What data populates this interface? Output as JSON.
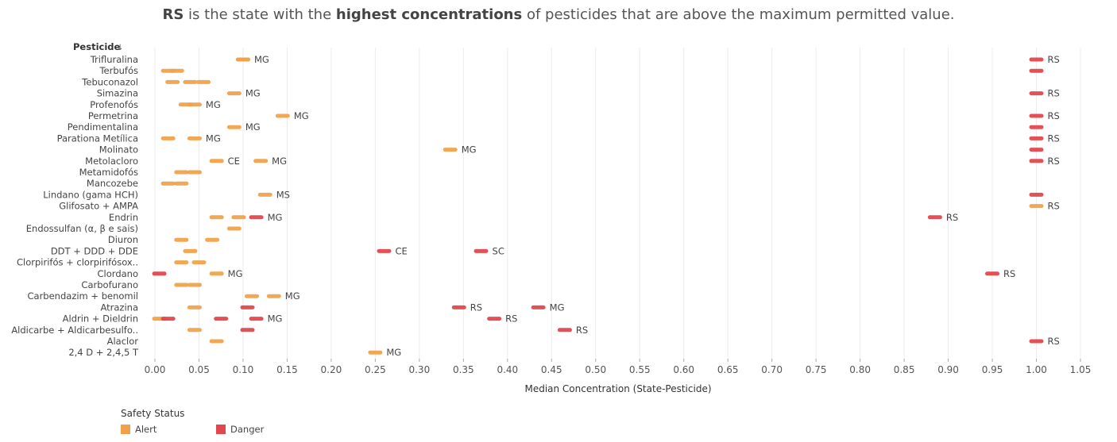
{
  "title": {
    "part1": "RS",
    "part2": " is the state with the ",
    "part3": "highest concentrations",
    "part4": " of pesticides that are above the maximum permitted value."
  },
  "colors": {
    "alert": "#f0a24a",
    "danger": "#e2474c"
  },
  "legend": {
    "title": "Safety Status",
    "items": [
      {
        "label": "Alert",
        "color": "#f0a24a"
      },
      {
        "label": "Danger",
        "color": "#e2474c"
      }
    ]
  },
  "chart_data": {
    "type": "scatter",
    "ylabel": "Pesticide",
    "sort_icon": "sort-descending-icon",
    "xlabel": "Median Concentration (State-Pesticide)",
    "xlim": [
      -0.01,
      1.05
    ],
    "xticks": [
      0.0,
      0.05,
      0.1,
      0.15,
      0.2,
      0.25,
      0.3,
      0.35,
      0.4,
      0.45,
      0.5,
      0.55,
      0.6,
      0.65,
      0.7,
      0.75,
      0.8,
      0.85,
      0.9,
      0.95,
      1.0,
      1.05
    ],
    "xtick_labels": [
      "0.00",
      "0.05",
      "0.10",
      "0.15",
      "0.20",
      "0.25",
      "0.30",
      "0.35",
      "0.40",
      "0.45",
      "0.50",
      "0.55",
      "0.60",
      "0.65",
      "0.70",
      "0.75",
      "0.80",
      "0.85",
      "0.90",
      "0.95",
      "1.00",
      "1.05"
    ],
    "grid": "vertical",
    "categories": [
      "Trifluralina",
      "Terbufós",
      "Tebuconazol",
      "Simazina",
      "Profenofós",
      "Permetrina",
      "Pendimentalina",
      "Parationa Metílica",
      "Molinato",
      "Metolacloro",
      "Metamidofós",
      "Mancozebe",
      "Lindano (gama HCH)",
      "Glifosato + AMPA",
      "Endrin",
      "Endossulfan (α, β e sais)",
      "Diuron",
      "DDT + DDD + DDE",
      "Clorpirifós + clorpirifósox..",
      "Clordano",
      "Carbofurano",
      "Carbendazim + benomil",
      "Atrazina",
      "Aldrin + Dieldrin",
      "Aldicarbe + Aldicarbesulfo..",
      "Alaclor",
      "2,4 D + 2,4,5 T"
    ],
    "points": [
      {
        "cat": "Trifluralina",
        "x": 0.1,
        "status": "Alert"
      },
      {
        "cat": "Trifluralina",
        "x": 0.1,
        "status": "Alert",
        "label": "MG"
      },
      {
        "cat": "Trifluralina",
        "x": 1.0,
        "status": "Danger",
        "label": "RS"
      },
      {
        "cat": "Terbufós",
        "x": 0.015,
        "status": "Alert"
      },
      {
        "cat": "Terbufós",
        "x": 0.025,
        "status": "Alert"
      },
      {
        "cat": "Terbufós",
        "x": 1.0,
        "status": "Danger"
      },
      {
        "cat": "Tebuconazol",
        "x": 0.02,
        "status": "Alert"
      },
      {
        "cat": "Tebuconazol",
        "x": 0.04,
        "status": "Alert"
      },
      {
        "cat": "Tebuconazol",
        "x": 0.055,
        "status": "Alert"
      },
      {
        "cat": "Simazina",
        "x": 0.09,
        "status": "Alert",
        "label": "MG"
      },
      {
        "cat": "Simazina",
        "x": 1.0,
        "status": "Danger",
        "label": "RS"
      },
      {
        "cat": "Profenofós",
        "x": 0.035,
        "status": "Alert"
      },
      {
        "cat": "Profenofós",
        "x": 0.045,
        "status": "Alert",
        "label": "MG"
      },
      {
        "cat": "Permetrina",
        "x": 0.145,
        "status": "Alert",
        "label": "MG"
      },
      {
        "cat": "Permetrina",
        "x": 1.0,
        "status": "Danger",
        "label": "RS"
      },
      {
        "cat": "Pendimentalina",
        "x": 0.09,
        "status": "Alert",
        "label": "MG"
      },
      {
        "cat": "Pendimentalina",
        "x": 1.0,
        "status": "Danger"
      },
      {
        "cat": "Parationa Metílica",
        "x": 0.015,
        "status": "Alert"
      },
      {
        "cat": "Parationa Metílica",
        "x": 0.045,
        "status": "Alert",
        "label": "MG"
      },
      {
        "cat": "Parationa Metílica",
        "x": 1.0,
        "status": "Danger",
        "label": "RS"
      },
      {
        "cat": "Molinato",
        "x": 0.335,
        "status": "Alert",
        "label": "MG"
      },
      {
        "cat": "Molinato",
        "x": 1.0,
        "status": "Danger"
      },
      {
        "cat": "Metolacloro",
        "x": 0.07,
        "status": "Alert",
        "label": "CE"
      },
      {
        "cat": "Metolacloro",
        "x": 0.12,
        "status": "Alert",
        "label": "MG"
      },
      {
        "cat": "Metolacloro",
        "x": 1.0,
        "status": "Danger",
        "label": "RS"
      },
      {
        "cat": "Metamidofós",
        "x": 0.03,
        "status": "Alert"
      },
      {
        "cat": "Metamidofós",
        "x": 0.045,
        "status": "Alert"
      },
      {
        "cat": "Mancozebe",
        "x": 0.015,
        "status": "Alert"
      },
      {
        "cat": "Mancozebe",
        "x": 0.03,
        "status": "Alert"
      },
      {
        "cat": "Lindano (gama HCH)",
        "x": 0.125,
        "status": "Alert",
        "label": "MS"
      },
      {
        "cat": "Lindano (gama HCH)",
        "x": 1.0,
        "status": "Danger"
      },
      {
        "cat": "Glifosato + AMPA",
        "x": 1.0,
        "status": "Alert",
        "label": "RS"
      },
      {
        "cat": "Endrin",
        "x": 0.07,
        "status": "Alert"
      },
      {
        "cat": "Endrin",
        "x": 0.095,
        "status": "Alert"
      },
      {
        "cat": "Endrin",
        "x": 0.115,
        "status": "Danger",
        "label": "MG"
      },
      {
        "cat": "Endrin",
        "x": 0.885,
        "status": "Danger",
        "label": "RS"
      },
      {
        "cat": "Endossulfan (α, β e sais)",
        "x": 0.09,
        "status": "Alert"
      },
      {
        "cat": "Diuron",
        "x": 0.03,
        "status": "Alert"
      },
      {
        "cat": "Diuron",
        "x": 0.065,
        "status": "Alert"
      },
      {
        "cat": "DDT + DDD + DDE",
        "x": 0.04,
        "status": "Alert"
      },
      {
        "cat": "DDT + DDD + DDE",
        "x": 0.26,
        "status": "Danger",
        "label": "CE"
      },
      {
        "cat": "DDT + DDD + DDE",
        "x": 0.37,
        "status": "Danger",
        "label": "SC"
      },
      {
        "cat": "Clorpirifós + clorpirifósox..",
        "x": 0.03,
        "status": "Alert"
      },
      {
        "cat": "Clorpirifós + clorpirifósox..",
        "x": 0.05,
        "status": "Alert"
      },
      {
        "cat": "Clordano",
        "x": 0.005,
        "status": "Danger"
      },
      {
        "cat": "Clordano",
        "x": 0.07,
        "status": "Alert",
        "label": "MG"
      },
      {
        "cat": "Clordano",
        "x": 0.95,
        "status": "Danger",
        "label": "RS"
      },
      {
        "cat": "Carbofurano",
        "x": 0.03,
        "status": "Alert"
      },
      {
        "cat": "Carbofurano",
        "x": 0.045,
        "status": "Alert"
      },
      {
        "cat": "Carbendazim + benomil",
        "x": 0.11,
        "status": "Alert"
      },
      {
        "cat": "Carbendazim + benomil",
        "x": 0.135,
        "status": "Alert",
        "label": "MG"
      },
      {
        "cat": "Atrazina",
        "x": 0.045,
        "status": "Alert"
      },
      {
        "cat": "Atrazina",
        "x": 0.105,
        "status": "Danger"
      },
      {
        "cat": "Atrazina",
        "x": 0.345,
        "status": "Danger",
        "label": "RS"
      },
      {
        "cat": "Atrazina",
        "x": 0.435,
        "status": "Danger",
        "label": "MG"
      },
      {
        "cat": "Aldrin + Dieldrin",
        "x": 0.005,
        "status": "Alert"
      },
      {
        "cat": "Aldrin + Dieldrin",
        "x": 0.015,
        "status": "Danger"
      },
      {
        "cat": "Aldrin + Dieldrin",
        "x": 0.075,
        "status": "Danger"
      },
      {
        "cat": "Aldrin + Dieldrin",
        "x": 0.115,
        "status": "Danger",
        "label": "MG"
      },
      {
        "cat": "Aldrin + Dieldrin",
        "x": 0.385,
        "status": "Danger",
        "label": "RS"
      },
      {
        "cat": "Aldicarbe + Aldicarbesulfo..",
        "x": 0.045,
        "status": "Alert"
      },
      {
        "cat": "Aldicarbe + Aldicarbesulfo..",
        "x": 0.105,
        "status": "Danger"
      },
      {
        "cat": "Aldicarbe + Aldicarbesulfo..",
        "x": 0.465,
        "status": "Danger",
        "label": "RS"
      },
      {
        "cat": "Alaclor",
        "x": 0.07,
        "status": "Alert"
      },
      {
        "cat": "Alaclor",
        "x": 1.0,
        "status": "Danger",
        "label": "RS"
      },
      {
        "cat": "2,4 D + 2,4,5 T",
        "x": 0.25,
        "status": "Alert",
        "label": "MG"
      }
    ]
  }
}
